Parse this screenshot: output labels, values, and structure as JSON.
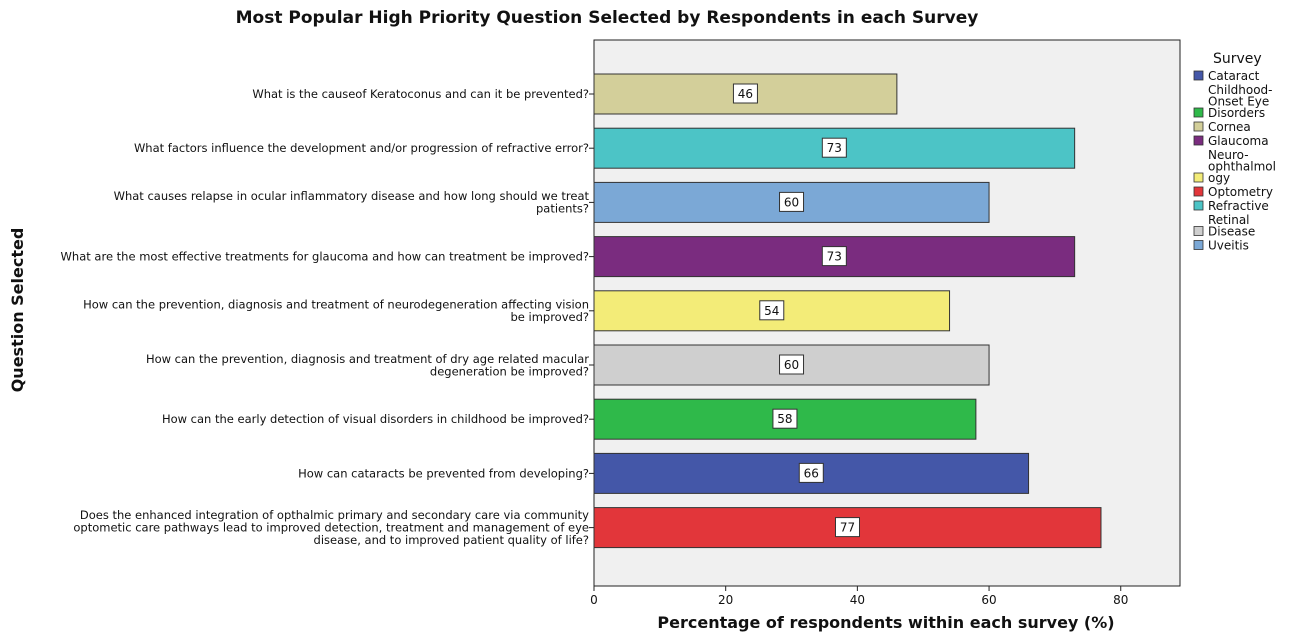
{
  "chart_data": {
    "type": "bar",
    "orientation": "horizontal",
    "title": "Most Popular High Priority Question Selected by Respondents in each Survey",
    "xlabel": "Percentage of respondents within each survey (%)",
    "ylabel": "Question Selected",
    "xlim": [
      0,
      89
    ],
    "x_ticks": [
      0,
      20,
      40,
      60,
      80
    ],
    "grid": false,
    "legend_position": "right",
    "legend_title": "Survey",
    "legend": [
      {
        "name": "Cataract",
        "color": "#4457a8"
      },
      {
        "name": "Childhood-Onset Eye Disorders",
        "color": "#2fb94a"
      },
      {
        "name": "Cornea",
        "color": "#d3cf9a"
      },
      {
        "name": "Glaucoma",
        "color": "#7a2c7f"
      },
      {
        "name": "Neuro-ophthalmology",
        "color": "#f3ec78"
      },
      {
        "name": "Optometry",
        "color": "#e2363a"
      },
      {
        "name": "Refractive",
        "color": "#4cc4c6"
      },
      {
        "name": "Retinal Disease",
        "color": "#cfcfcf"
      },
      {
        "name": "Uveitis",
        "color": "#7ba8d6"
      }
    ],
    "bars": [
      {
        "question": "What is the causeof Keratoconus and can it be prevented?",
        "value": 46,
        "series": "Cornea"
      },
      {
        "question": "What factors influence the development and/or progression of refractive error?",
        "value": 73,
        "series": "Refractive"
      },
      {
        "question": "What causes relapse in ocular inflammatory disease and how long should we treat patients?",
        "value": 60,
        "series": "Uveitis"
      },
      {
        "question": "What are the most effective treatments for glaucoma and how can treatment be improved?",
        "value": 73,
        "series": "Glaucoma"
      },
      {
        "question": "How can the prevention, diagnosis and treatment of neurodegeneration affecting vision be improved?",
        "value": 54,
        "series": "Neuro-ophthalmology"
      },
      {
        "question": "How can the prevention, diagnosis and treatment of dry age related macular degeneration be improved?",
        "value": 60,
        "series": "Retinal Disease"
      },
      {
        "question": "How can the early detection of visual disorders in childhood be improved?",
        "value": 58,
        "series": "Childhood-Onset Eye Disorders"
      },
      {
        "question": "How can cataracts be prevented from developing?",
        "value": 66,
        "series": "Cataract"
      },
      {
        "question": "Does the enhanced integration of opthalmic primary and secondary care via community optometic care pathways lead to improved detection, treatment and management of eye disease, and to improved patient quality of life?",
        "value": 77,
        "series": "Optometry"
      }
    ]
  }
}
